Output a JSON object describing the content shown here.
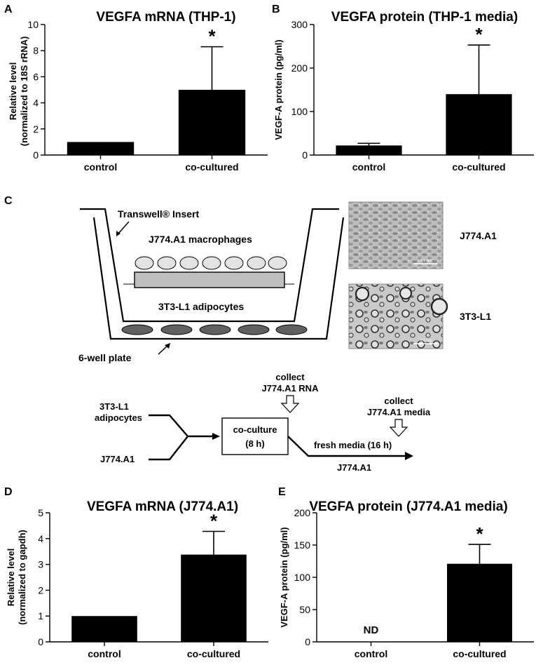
{
  "panels": {
    "A": "A",
    "B": "B",
    "C": "C",
    "D": "D",
    "E": "E"
  },
  "chart_data": [
    {
      "id": "A",
      "type": "bar",
      "title": "VEGFA mRNA (THP-1)",
      "ylabel_line1": "Relative level",
      "ylabel_line2": "(normalized to 18S rRNA)",
      "categories": [
        "control",
        "co-cultured"
      ],
      "values": [
        1.0,
        5.0
      ],
      "errors": [
        0,
        3.3
      ],
      "significance": [
        "",
        "*"
      ],
      "ylim": [
        0,
        10
      ],
      "yticks": [
        0,
        2,
        4,
        6,
        8,
        10
      ],
      "bar_color": "#000000"
    },
    {
      "id": "B",
      "type": "bar",
      "title": "VEGFA protein (THP-1 media)",
      "ylabel_line1": "VEGF-A protein (pg/ml)",
      "ylabel_line2": "",
      "categories": [
        "control",
        "co-cultured"
      ],
      "values": [
        22,
        140
      ],
      "errors": [
        5,
        113
      ],
      "significance": [
        "",
        "*"
      ],
      "ylim": [
        0,
        300
      ],
      "yticks": [
        0,
        100,
        200,
        300
      ],
      "bar_color": "#000000"
    },
    {
      "id": "D",
      "type": "bar",
      "title": "VEGFA mRNA (J774.A1)",
      "ylabel_line1": "Relative level",
      "ylabel_line2": "(normalized to gapdh)",
      "categories": [
        "control",
        "co-cultured"
      ],
      "values": [
        1.0,
        3.38
      ],
      "errors": [
        0,
        0.9
      ],
      "significance": [
        "",
        "*"
      ],
      "ylim": [
        0,
        5
      ],
      "yticks": [
        0,
        1,
        2,
        3,
        4,
        5
      ],
      "bar_color": "#000000"
    },
    {
      "id": "E",
      "type": "bar",
      "title": "VEGFA protein (J774.A1 media)",
      "ylabel_line1": "VEGF-A protein (pg/ml)",
      "ylabel_line2": "",
      "categories": [
        "control",
        "co-cultured"
      ],
      "values": [
        0,
        121
      ],
      "errors": [
        0,
        30
      ],
      "significance": [
        "",
        "*"
      ],
      "annotations": [
        "ND",
        ""
      ],
      "ylim": [
        0,
        200
      ],
      "yticks": [
        0,
        50,
        100,
        150,
        200
      ],
      "bar_color": "#000000"
    }
  ],
  "diagram": {
    "transwell_label": "Transwell® Insert",
    "macrophages_label": "J774.A1 macrophages",
    "adipocytes_label": "3T3-L1 adipocytes",
    "plate_label": "6-well plate",
    "photo1_label": "J774.A1",
    "photo2_label": "3T3-L1",
    "photo1_scale": "0.1 mm",
    "photo2_scale": "0.1 mm",
    "top_cell_color": "#e3e3e3",
    "insert_color": "#bfbfbf",
    "bottom_cell_color": "#606060"
  },
  "flow": {
    "input1_line1": "3T3-L1",
    "input1_line2": "adipocytes",
    "input2": "J774.A1",
    "box_line1": "co-culture",
    "box_line2": "(8 h)",
    "collect1_line1": "collect",
    "collect1_line2": "J774.A1 RNA",
    "collect2_line1": "collect",
    "collect2_line2": "J774.A1 media",
    "step_label": "fresh media (16 h)",
    "step_sub": "J774.A1"
  }
}
